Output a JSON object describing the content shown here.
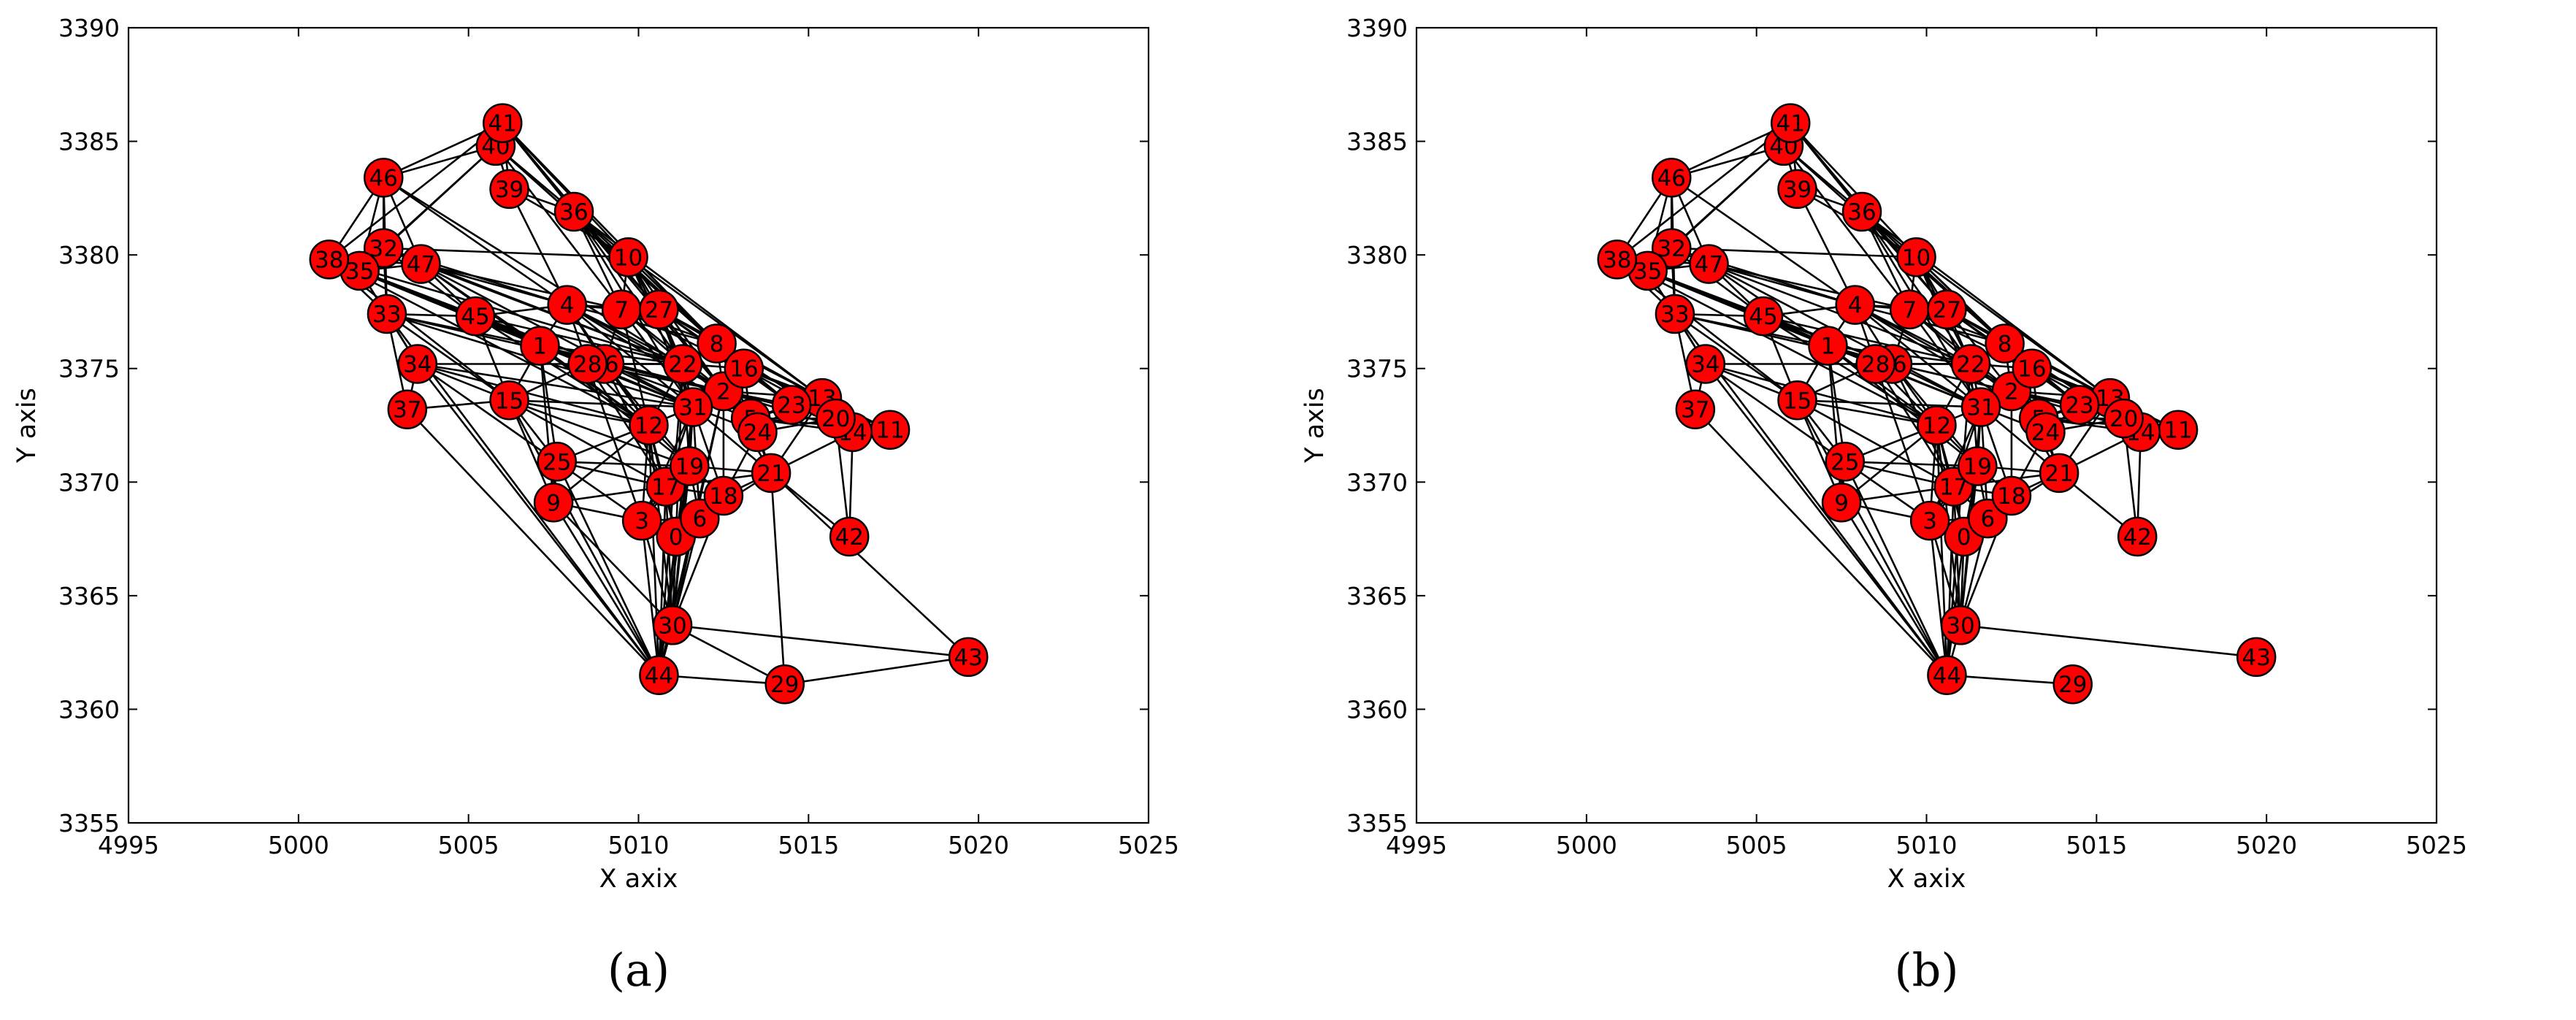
{
  "chart_data": [
    {
      "type": "scatter",
      "caption": "(a)",
      "xlabel": "X axix",
      "ylabel": "Y axis",
      "xlim": [
        4995,
        5025
      ],
      "ylim": [
        3355,
        3390
      ],
      "xticks": [
        "4995",
        "5000",
        "5005",
        "5010",
        "5015",
        "5020",
        "5025"
      ],
      "yticks": [
        "3355",
        "3360",
        "3365",
        "3370",
        "3375",
        "3380",
        "3385",
        "3390"
      ],
      "grid": false,
      "node_color": "#ff0000",
      "edge_color": "#000000",
      "nodes": [
        {
          "id": "0",
          "x": 5011.1,
          "y": 3367.6
        },
        {
          "id": "1",
          "x": 5007.1,
          "y": 3376.0
        },
        {
          "id": "2",
          "x": 5012.5,
          "y": 3374.0
        },
        {
          "id": "3",
          "x": 5010.1,
          "y": 3368.3
        },
        {
          "id": "4",
          "x": 5007.9,
          "y": 3377.8
        },
        {
          "id": "5",
          "x": 5013.3,
          "y": 3372.8
        },
        {
          "id": "6",
          "x": 5011.8,
          "y": 3368.4
        },
        {
          "id": "7",
          "x": 5009.5,
          "y": 3377.6
        },
        {
          "id": "8",
          "x": 5012.3,
          "y": 3376.1
        },
        {
          "id": "9",
          "x": 5007.5,
          "y": 3369.1
        },
        {
          "id": "10",
          "x": 5009.7,
          "y": 3379.9
        },
        {
          "id": "11",
          "x": 5017.4,
          "y": 3372.3
        },
        {
          "id": "12",
          "x": 5010.3,
          "y": 3372.5
        },
        {
          "id": "13",
          "x": 5015.4,
          "y": 3373.7
        },
        {
          "id": "14",
          "x": 5016.3,
          "y": 3372.2
        },
        {
          "id": "15",
          "x": 5006.2,
          "y": 3373.6
        },
        {
          "id": "16",
          "x": 5013.1,
          "y": 3375.0
        },
        {
          "id": "17",
          "x": 5010.8,
          "y": 3369.8
        },
        {
          "id": "18",
          "x": 5012.5,
          "y": 3369.4
        },
        {
          "id": "19",
          "x": 5011.5,
          "y": 3370.7
        },
        {
          "id": "20",
          "x": 5015.8,
          "y": 3372.8
        },
        {
          "id": "21",
          "x": 5013.9,
          "y": 3370.4
        },
        {
          "id": "22",
          "x": 5011.3,
          "y": 3375.2
        },
        {
          "id": "23",
          "x": 5014.5,
          "y": 3373.4
        },
        {
          "id": "24",
          "x": 5013.5,
          "y": 3372.2
        },
        {
          "id": "25",
          "x": 5007.6,
          "y": 3370.9
        },
        {
          "id": "26",
          "x": 5009.0,
          "y": 3375.2
        },
        {
          "id": "27",
          "x": 5010.6,
          "y": 3377.6
        },
        {
          "id": "28",
          "x": 5008.5,
          "y": 3375.2
        },
        {
          "id": "29",
          "x": 5014.3,
          "y": 3361.1
        },
        {
          "id": "30",
          "x": 5011.0,
          "y": 3363.7
        },
        {
          "id": "31",
          "x": 5011.6,
          "y": 3373.3
        },
        {
          "id": "32",
          "x": 5002.5,
          "y": 3380.3
        },
        {
          "id": "33",
          "x": 5002.6,
          "y": 3377.4
        },
        {
          "id": "34",
          "x": 5003.5,
          "y": 3375.2
        },
        {
          "id": "35",
          "x": 5001.8,
          "y": 3379.3
        },
        {
          "id": "36",
          "x": 5008.1,
          "y": 3381.9
        },
        {
          "id": "37",
          "x": 5003.2,
          "y": 3373.2
        },
        {
          "id": "38",
          "x": 5000.9,
          "y": 3379.8
        },
        {
          "id": "39",
          "x": 5006.2,
          "y": 3382.9
        },
        {
          "id": "40",
          "x": 5005.8,
          "y": 3384.8
        },
        {
          "id": "41",
          "x": 5006.0,
          "y": 3385.8
        },
        {
          "id": "42",
          "x": 5016.2,
          "y": 3367.6
        },
        {
          "id": "43",
          "x": 5019.7,
          "y": 3362.3
        },
        {
          "id": "44",
          "x": 5010.6,
          "y": 3361.5
        },
        {
          "id": "45",
          "x": 5005.2,
          "y": 3377.3
        },
        {
          "id": "46",
          "x": 5002.5,
          "y": 3383.4
        },
        {
          "id": "47",
          "x": 5003.6,
          "y": 3379.6
        }
      ]
    },
    {
      "type": "scatter",
      "caption": "(b)",
      "xlabel": "X axix",
      "ylabel": "Y axis",
      "xlim": [
        4995,
        5025
      ],
      "ylim": [
        3355,
        3390
      ],
      "xticks": [
        "4995",
        "5000",
        "5005",
        "5010",
        "5015",
        "5020",
        "5025"
      ],
      "yticks": [
        "3355",
        "3360",
        "3365",
        "3370",
        "3375",
        "3380",
        "3385",
        "3390"
      ],
      "grid": false,
      "node_color": "#ff0000",
      "edge_color": "#000000",
      "nodes": [
        {
          "id": "0",
          "x": 5011.1,
          "y": 3367.6
        },
        {
          "id": "1",
          "x": 5007.1,
          "y": 3376.0
        },
        {
          "id": "2",
          "x": 5012.5,
          "y": 3374.0
        },
        {
          "id": "3",
          "x": 5010.1,
          "y": 3368.3
        },
        {
          "id": "4",
          "x": 5007.9,
          "y": 3377.8
        },
        {
          "id": "5",
          "x": 5013.3,
          "y": 3372.8
        },
        {
          "id": "6",
          "x": 5011.8,
          "y": 3368.4
        },
        {
          "id": "7",
          "x": 5009.5,
          "y": 3377.6
        },
        {
          "id": "8",
          "x": 5012.3,
          "y": 3376.1
        },
        {
          "id": "9",
          "x": 5007.5,
          "y": 3369.1
        },
        {
          "id": "10",
          "x": 5009.7,
          "y": 3379.9
        },
        {
          "id": "11",
          "x": 5017.4,
          "y": 3372.3
        },
        {
          "id": "12",
          "x": 5010.3,
          "y": 3372.5
        },
        {
          "id": "13",
          "x": 5015.4,
          "y": 3373.7
        },
        {
          "id": "14",
          "x": 5016.3,
          "y": 3372.2
        },
        {
          "id": "15",
          "x": 5006.2,
          "y": 3373.6
        },
        {
          "id": "16",
          "x": 5013.1,
          "y": 3375.0
        },
        {
          "id": "17",
          "x": 5010.8,
          "y": 3369.8
        },
        {
          "id": "18",
          "x": 5012.5,
          "y": 3369.4
        },
        {
          "id": "19",
          "x": 5011.5,
          "y": 3370.7
        },
        {
          "id": "20",
          "x": 5015.8,
          "y": 3372.8
        },
        {
          "id": "21",
          "x": 5013.9,
          "y": 3370.4
        },
        {
          "id": "22",
          "x": 5011.3,
          "y": 3375.2
        },
        {
          "id": "23",
          "x": 5014.5,
          "y": 3373.4
        },
        {
          "id": "24",
          "x": 5013.5,
          "y": 3372.2
        },
        {
          "id": "25",
          "x": 5007.6,
          "y": 3370.9
        },
        {
          "id": "26",
          "x": 5009.0,
          "y": 3375.2
        },
        {
          "id": "27",
          "x": 5010.6,
          "y": 3377.6
        },
        {
          "id": "28",
          "x": 5008.5,
          "y": 3375.2
        },
        {
          "id": "29",
          "x": 5014.3,
          "y": 3361.1
        },
        {
          "id": "30",
          "x": 5011.0,
          "y": 3363.7
        },
        {
          "id": "31",
          "x": 5011.6,
          "y": 3373.3
        },
        {
          "id": "32",
          "x": 5002.5,
          "y": 3380.3
        },
        {
          "id": "33",
          "x": 5002.6,
          "y": 3377.4
        },
        {
          "id": "34",
          "x": 5003.5,
          "y": 3375.2
        },
        {
          "id": "35",
          "x": 5001.8,
          "y": 3379.3
        },
        {
          "id": "36",
          "x": 5008.1,
          "y": 3381.9
        },
        {
          "id": "37",
          "x": 5003.2,
          "y": 3373.2
        },
        {
          "id": "38",
          "x": 5000.9,
          "y": 3379.8
        },
        {
          "id": "39",
          "x": 5006.2,
          "y": 3382.9
        },
        {
          "id": "40",
          "x": 5005.8,
          "y": 3384.8
        },
        {
          "id": "41",
          "x": 5006.0,
          "y": 3385.8
        },
        {
          "id": "42",
          "x": 5016.2,
          "y": 3367.6
        },
        {
          "id": "43",
          "x": 5019.7,
          "y": 3362.3
        },
        {
          "id": "44",
          "x": 5010.6,
          "y": 3361.5
        },
        {
          "id": "45",
          "x": 5005.2,
          "y": 3377.3
        },
        {
          "id": "46",
          "x": 5002.5,
          "y": 3383.4
        },
        {
          "id": "47",
          "x": 5003.6,
          "y": 3379.6
        }
      ]
    }
  ]
}
